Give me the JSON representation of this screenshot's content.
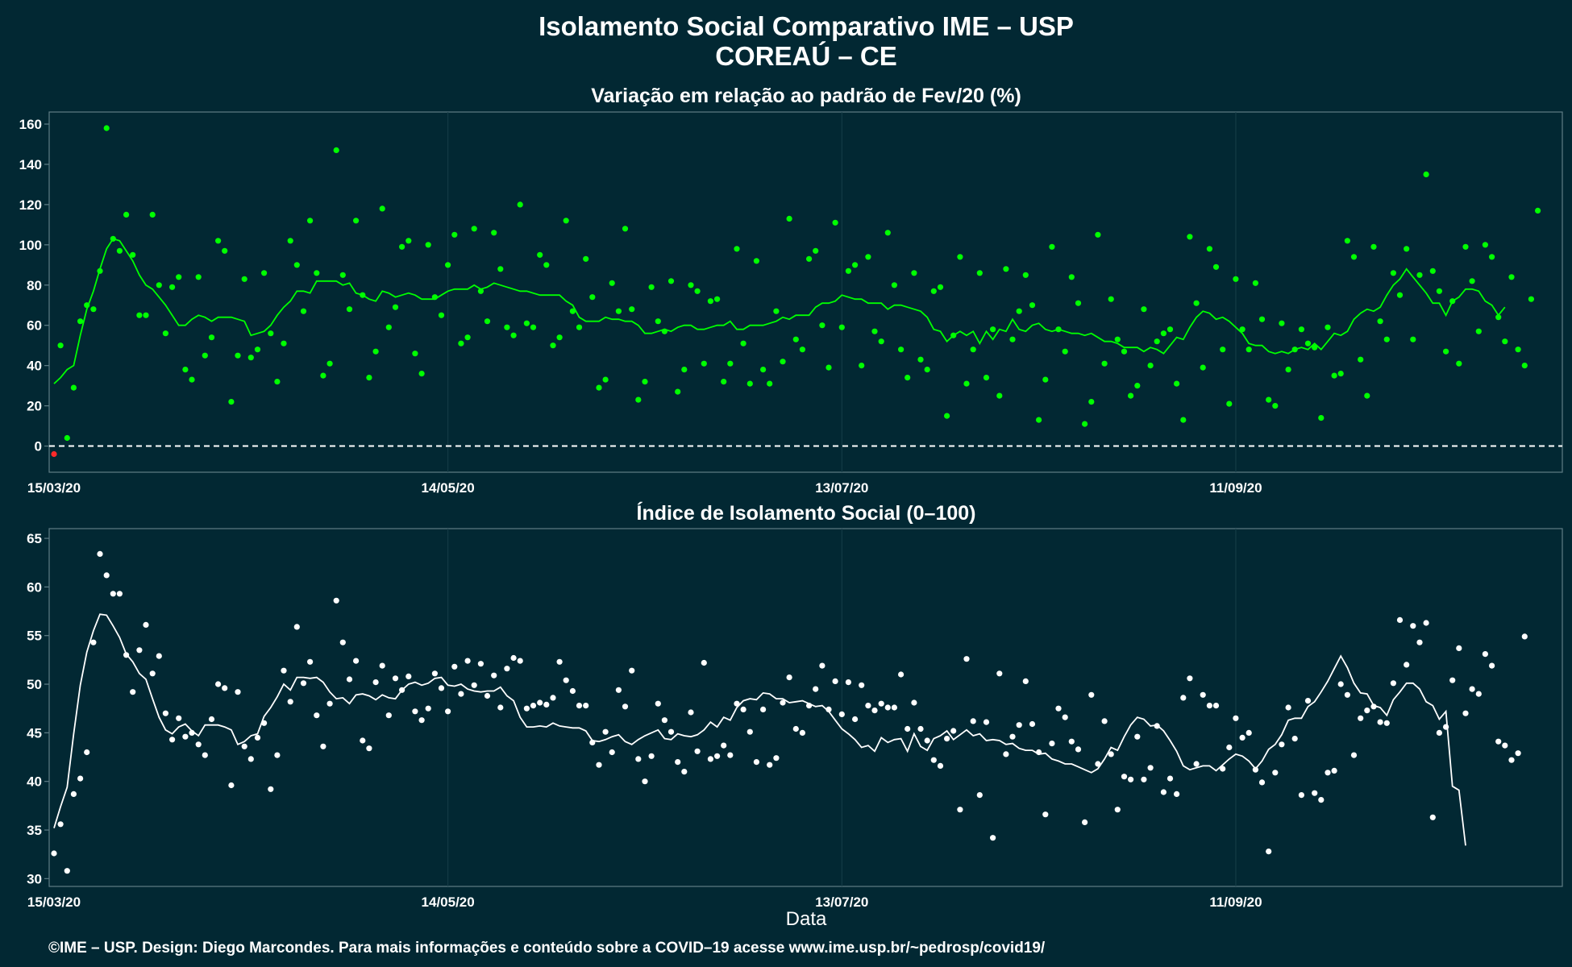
{
  "figure": {
    "title": "Isolamento Social Comparativo IME – USP",
    "subtitle": "COREAÚ – CE",
    "xlabel": "Data",
    "credit": "©IME – USP. Design: Diego Marcondes. Para mais informações e conteúdo sobre a COVID–19 acesse www.ime.usp.br/~pedrosp/covid19/"
  },
  "colors": {
    "background": "#022833",
    "panel_border": "#5f7d86",
    "grid": "#173e49",
    "variation_series": "#00ff00",
    "negative_point": "#ff2a2a",
    "index_series": "#ffffff",
    "zero_line": "#ffffff"
  },
  "chart_data": [
    {
      "type": "scatter",
      "title": "Variação em relação ao padrão de Fev/20 (%)",
      "x_ticks": [
        "15/03/20",
        "14/05/20",
        "13/07/20",
        "11/09/20"
      ],
      "x_tick_days": [
        0,
        60,
        120,
        180
      ],
      "x_range_days": [
        0,
        229
      ],
      "ylim": [
        -13,
        166
      ],
      "y_ticks": [
        0,
        20,
        40,
        60,
        80,
        100,
        120,
        140,
        160
      ],
      "reference_line": 0,
      "grid": true,
      "series": [
        {
          "kind": "points",
          "values": [
            -4,
            50,
            4,
            29,
            62,
            70,
            68,
            87,
            158,
            103,
            97,
            115,
            95,
            65,
            65,
            115,
            80,
            56,
            79,
            84,
            38,
            33,
            84,
            45,
            54,
            102,
            97,
            22,
            45,
            83,
            44,
            48,
            86,
            56,
            32,
            51,
            102,
            90,
            67,
            112,
            86,
            35,
            41,
            147,
            85,
            68,
            112,
            75,
            34,
            47,
            118,
            59,
            69,
            99,
            102,
            46,
            36,
            100,
            74,
            65,
            90,
            105,
            51,
            54,
            108,
            77,
            62,
            106,
            88,
            59,
            55,
            120,
            61,
            59,
            95,
            90,
            50,
            54,
            112,
            67,
            59,
            93,
            74,
            29,
            33,
            81,
            67,
            108,
            68,
            23,
            32,
            79,
            62,
            57,
            82,
            27,
            38,
            80,
            77,
            41,
            72,
            73,
            32,
            41,
            98,
            51,
            31,
            92,
            38,
            31,
            67,
            42,
            113,
            53,
            48,
            93,
            97,
            60,
            39,
            111,
            59,
            87,
            90,
            40,
            94,
            57,
            52,
            106,
            80,
            48,
            34,
            86,
            43,
            38,
            77,
            79,
            15,
            55,
            94,
            31,
            48,
            86,
            34,
            58,
            25,
            88,
            53,
            67,
            85,
            70,
            13,
            33,
            99,
            58,
            47,
            84,
            71,
            11,
            22,
            105,
            41,
            73,
            53,
            47,
            25,
            30,
            68,
            40,
            52,
            56,
            58,
            31,
            13,
            104,
            71,
            39,
            98,
            89,
            48,
            21,
            83,
            58,
            48,
            81,
            63,
            23,
            20,
            61,
            38,
            48,
            58,
            51,
            49,
            14,
            59,
            35,
            36,
            102,
            94,
            43,
            25,
            99,
            62,
            53,
            86,
            75,
            98,
            53,
            85,
            135,
            87,
            77,
            47,
            72,
            41,
            99,
            82,
            57,
            100,
            94,
            64,
            52,
            84,
            48,
            40,
            73,
            117
          ]
        },
        {
          "kind": "moving_average",
          "values": [
            31,
            34,
            38,
            40,
            55,
            68,
            77,
            88,
            98,
            103,
            102,
            97,
            92,
            85,
            80,
            78,
            74,
            70,
            65,
            60,
            60,
            63,
            65,
            64,
            62,
            64,
            64,
            64,
            63,
            62,
            55,
            56,
            57,
            60,
            65,
            69,
            72,
            77,
            77,
            76,
            82,
            82,
            82,
            82,
            80,
            81,
            76,
            75,
            73,
            72,
            77,
            76,
            74,
            75,
            76,
            75,
            73,
            73,
            73,
            75,
            77,
            78,
            78,
            78,
            80,
            78,
            79,
            81,
            80,
            79,
            78,
            77,
            77,
            76,
            75,
            75,
            75,
            75,
            72,
            70,
            64,
            62,
            62,
            62,
            64,
            63,
            63,
            62,
            62,
            60,
            56,
            56,
            57,
            58,
            57,
            59,
            60,
            60,
            58,
            58,
            59,
            60,
            60,
            62,
            58,
            58,
            60,
            60,
            60,
            61,
            62,
            64,
            63,
            65,
            65,
            65,
            69,
            71,
            71,
            72,
            75,
            74,
            73,
            73,
            71,
            71,
            71,
            68,
            70,
            70,
            69,
            68,
            67,
            64,
            58,
            57,
            52,
            55,
            57,
            55,
            57,
            51,
            57,
            53,
            58,
            57,
            63,
            58,
            57,
            60,
            61,
            58,
            57,
            58,
            57,
            56,
            56,
            55,
            56,
            54,
            52,
            52,
            51,
            49,
            49,
            49,
            47,
            49,
            48,
            46,
            50,
            54,
            53,
            59,
            64,
            67,
            66,
            63,
            64,
            62,
            59,
            56,
            51,
            50,
            50,
            47,
            46,
            47,
            46,
            48,
            49,
            48,
            51,
            48,
            52,
            56,
            55,
            57,
            63,
            66,
            68,
            67,
            69,
            75,
            80,
            83,
            88,
            84,
            80,
            76,
            71,
            71,
            65,
            72,
            74,
            78,
            78,
            77,
            72,
            70,
            65,
            69
          ]
        }
      ]
    },
    {
      "type": "scatter",
      "title": "Índice de Isolamento Social (0–100)",
      "x_ticks": [
        "15/03/20",
        "14/05/20",
        "13/07/20",
        "11/09/20"
      ],
      "x_tick_days": [
        0,
        60,
        120,
        180
      ],
      "x_range_days": [
        0,
        229
      ],
      "ylim": [
        29.2,
        66
      ],
      "y_ticks": [
        30,
        35,
        40,
        45,
        50,
        55,
        60,
        65
      ],
      "grid": true,
      "series": [
        {
          "kind": "points",
          "values": [
            32.6,
            35.6,
            30.8,
            38.7,
            40.3,
            43,
            54.3,
            63.4,
            61.2,
            59.3,
            59.3,
            53,
            49.2,
            53.5,
            56.1,
            51.1,
            52.9,
            47,
            44.3,
            46.5,
            44.6,
            45,
            43.8,
            42.7,
            46.4,
            50,
            49.6,
            39.6,
            49.2,
            43.6,
            42.3,
            44.5,
            46,
            39.2,
            42.7,
            51.4,
            48.2,
            55.9,
            50.1,
            52.3,
            46.8,
            43.6,
            48,
            58.6,
            54.3,
            50.5,
            52.4,
            44.2,
            43.4,
            50.2,
            51.9,
            46.8,
            50.6,
            49.4,
            50.8,
            47.2,
            46.3,
            47.5,
            51.1,
            49.6,
            47.2,
            51.8,
            49,
            52.4,
            49.9,
            52.1,
            48.8,
            50.9,
            47.6,
            51.6,
            52.7,
            52.4,
            47.5,
            47.8,
            48.1,
            47.9,
            48.6,
            52.3,
            50.4,
            49.3,
            47.8,
            47.8,
            44,
            41.7,
            45.1,
            43,
            49.4,
            47.7,
            51.4,
            42.3,
            40,
            42.6,
            48,
            46.3,
            45.1,
            42,
            41,
            47.1,
            43.1,
            52.2,
            42.3,
            42.6,
            43.7,
            42.7,
            48,
            47.4,
            45.1,
            42,
            47.4,
            41.7,
            42.4,
            48.1,
            50.7,
            45.4,
            45,
            47.8,
            49.5,
            51.9,
            47.4,
            50.3,
            46.9,
            50.2,
            46.4,
            49.9,
            47.8,
            47.3,
            48,
            47.6,
            47.6,
            51,
            45.4,
            48.1,
            45.4,
            44.2,
            42.2,
            41.6,
            44.4,
            45.2,
            37.1,
            52.6,
            46.2,
            38.6,
            46.1,
            34.2,
            51.1,
            42.8,
            44.6,
            45.8,
            50.3,
            45.9,
            43,
            36.6,
            43.9,
            47.5,
            46.6,
            44.1,
            43.3,
            35.8,
            48.9,
            41.8,
            46.2,
            42.8,
            37.1,
            40.5,
            40.2,
            44.6,
            40.2,
            41.4,
            45.7,
            38.9,
            40.3,
            38.7,
            48.6,
            50.6,
            41.8,
            48.9,
            47.8,
            47.8,
            41.3,
            43.5,
            46.5,
            44.5,
            45,
            41.2,
            39.9,
            32.8,
            40.9,
            43.8,
            47.6,
            44.4,
            38.6,
            48.3,
            38.8,
            38.1,
            40.9,
            41.1,
            50,
            48.9,
            42.7,
            46.5,
            47.3,
            47.7,
            46.1,
            46,
            50.1,
            56.6,
            52,
            56,
            54.3,
            56.3,
            36.3,
            45,
            45.6,
            50.4,
            53.7,
            47,
            49.5,
            49,
            53.1,
            51.9,
            44.1,
            43.7,
            42.2,
            42.9,
            54.9
          ]
        },
        {
          "kind": "moving_average",
          "values": [
            35.2,
            37.4,
            39.4,
            44.9,
            49.9,
            53.3,
            55.5,
            57.2,
            57.1,
            56,
            54.8,
            53.1,
            52.3,
            51.1,
            50.5,
            48.5,
            46.6,
            45.3,
            44.9,
            45.6,
            45.9,
            45.2,
            44.7,
            45.8,
            45.8,
            45.8,
            45.6,
            45.3,
            43.8,
            44.1,
            44.7,
            44.9,
            46.7,
            47.6,
            48.7,
            50,
            49.4,
            50.7,
            50.7,
            50.6,
            50.7,
            50.2,
            49.2,
            48.5,
            48.6,
            48,
            48.9,
            49,
            48.8,
            48.4,
            48.9,
            48.6,
            48.5,
            49.4,
            50,
            50.2,
            49.9,
            50.1,
            50.6,
            50.7,
            49.9,
            49.8,
            50,
            49.5,
            49.3,
            49.2,
            49.3,
            49.3,
            49.7,
            48.8,
            48.3,
            46.6,
            45.6,
            45.6,
            45.7,
            45.6,
            46,
            45.7,
            45.6,
            45.5,
            45.5,
            45.2,
            44.2,
            44.1,
            44.3,
            44.6,
            44.8,
            44.1,
            43.8,
            44.3,
            44.7,
            45,
            45.3,
            44.4,
            44.3,
            44.9,
            44.7,
            44.6,
            44.8,
            45.3,
            46.1,
            45.6,
            46.6,
            46.3,
            47.6,
            48.3,
            48.5,
            48.4,
            49.1,
            49,
            48.5,
            48.5,
            48.1,
            48.2,
            48.3,
            48,
            47.7,
            47.8,
            47.2,
            46.3,
            45.4,
            44.9,
            44.3,
            43.5,
            43.7,
            43.1,
            44.5,
            44,
            44.3,
            44.4,
            43.1,
            44.9,
            43.6,
            43.2,
            44.4,
            44.7,
            45.2,
            44.3,
            44.8,
            45.3,
            44.7,
            44.9,
            44.2,
            44.3,
            44.2,
            43.8,
            43.9,
            43.4,
            43.2,
            43.2,
            42.8,
            42.9,
            42.3,
            42.1,
            41.8,
            41.8,
            41.5,
            41.2,
            40.9,
            41.3,
            42.3,
            43.5,
            43.2,
            44.6,
            45.8,
            46.6,
            46.4,
            45.7,
            45.8,
            45.2,
            44.2,
            43.1,
            41.6,
            41.2,
            41.4,
            41.6,
            41.6,
            41.1,
            41.7,
            42.3,
            42.8,
            42.6,
            42.1,
            41.3,
            42.1,
            43.3,
            43.8,
            44.8,
            46.3,
            46.5,
            46.5,
            47.7,
            48.2,
            49.2,
            50.3,
            51.6,
            52.9,
            51.7,
            50.1,
            49.1,
            49,
            47.8,
            47.6,
            46.8,
            48.4,
            49.2,
            50.1,
            50.1,
            49.5,
            48.2,
            47.8,
            46.4,
            47.2,
            39.5,
            39.1,
            33.4
          ]
        }
      ]
    }
  ]
}
